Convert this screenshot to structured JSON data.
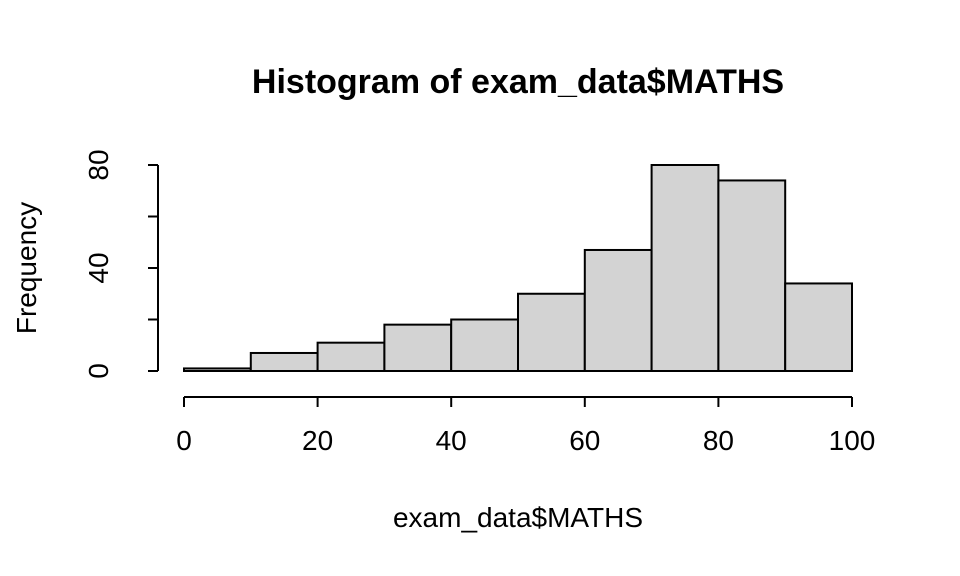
{
  "chart_data": {
    "type": "bar",
    "title": "Histogram of exam_data$MATHS",
    "xlabel": "exam_data$MATHS",
    "ylabel": "Frequency",
    "bins": [
      {
        "start": 0,
        "end": 10,
        "count": 1
      },
      {
        "start": 10,
        "end": 20,
        "count": 7
      },
      {
        "start": 20,
        "end": 30,
        "count": 11
      },
      {
        "start": 30,
        "end": 40,
        "count": 18
      },
      {
        "start": 40,
        "end": 50,
        "count": 20
      },
      {
        "start": 50,
        "end": 60,
        "count": 30
      },
      {
        "start": 60,
        "end": 70,
        "count": 47
      },
      {
        "start": 70,
        "end": 80,
        "count": 80
      },
      {
        "start": 80,
        "end": 90,
        "count": 74
      },
      {
        "start": 90,
        "end": 100,
        "count": 34
      }
    ],
    "xlim": [
      0,
      100
    ],
    "ylim": [
      0,
      80
    ],
    "x_ticks": [
      0,
      20,
      40,
      60,
      80,
      100
    ],
    "y_ticks": [
      0,
      20,
      40,
      60,
      80
    ],
    "y_tick_labels": [
      "0",
      "",
      "40",
      "",
      "80"
    ],
    "bar_fill": "#d3d3d3",
    "grid": false
  }
}
